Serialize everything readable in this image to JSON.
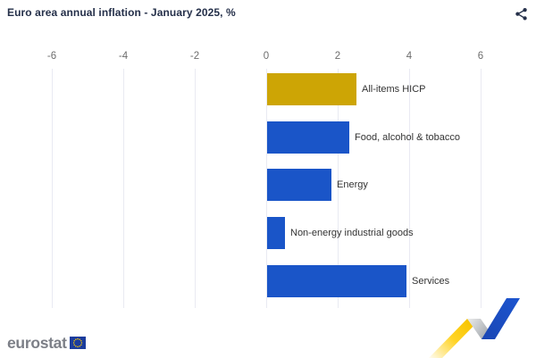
{
  "header": {
    "title": "Euro area annual inflation - January 2025, %",
    "share_icon": "share-icon"
  },
  "chart_data": {
    "type": "bar",
    "orientation": "horizontal",
    "title": "Euro area annual inflation - January 2025, %",
    "categories": [
      "All-items HICP",
      "Food, alcohol & tobacco",
      "Energy",
      "Non-energy industrial goods",
      "Services"
    ],
    "values": [
      2.5,
      2.3,
      1.8,
      0.5,
      3.9
    ],
    "bar_colors": [
      "#cda505",
      "#1a55c8",
      "#1a55c8",
      "#1a55c8",
      "#1a55c8"
    ],
    "xlabel": "",
    "ylabel": "",
    "xlim": [
      -6.5,
      6.5
    ],
    "ticks": [
      -6,
      -4,
      -2,
      0,
      2,
      4,
      6
    ],
    "grid": true,
    "legend": false
  },
  "footer": {
    "logo_text": "eurostat"
  },
  "colors": {
    "accent_gold": "#cda505",
    "accent_blue": "#1a55c8",
    "grid": "#e9eaf2",
    "tick_text": "#6e6e6e",
    "label_text": "#333333",
    "title_text": "#25304a",
    "logo_gray": "#7c7f87",
    "eu_flag_blue": "#1b3c9c",
    "star_yellow": "#ffcc00",
    "deco_gray": "#a9adb3"
  }
}
